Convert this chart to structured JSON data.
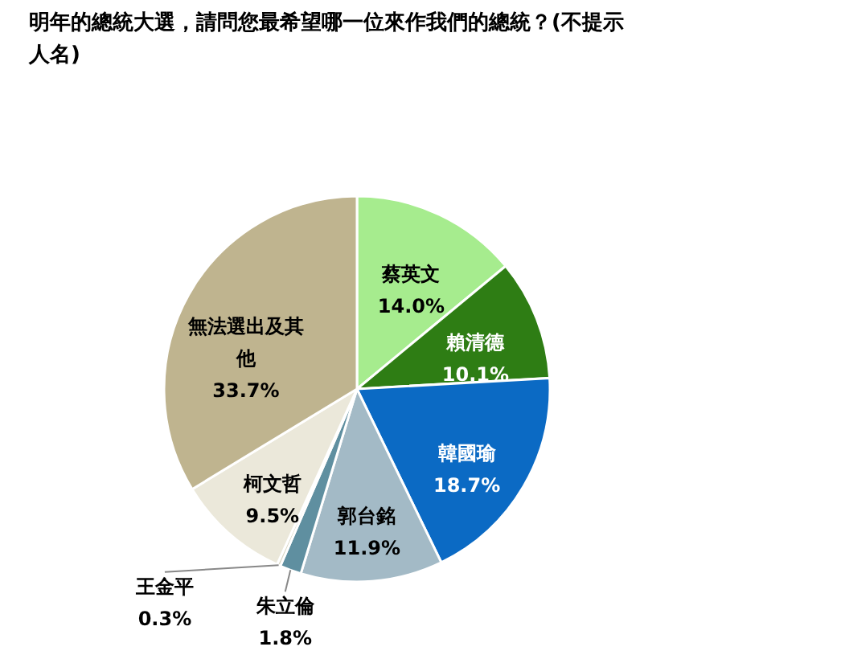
{
  "chart_data": {
    "type": "pie",
    "title": "明年的總統大選，請問您最希望哪一位來作我們的總統？(不提示人名)",
    "categories": [
      "蔡英文",
      "賴清德",
      "韓國瑜",
      "郭台銘",
      "朱立倫",
      "王金平",
      "柯文哲",
      "無法選出及其他"
    ],
    "values": [
      14.0,
      10.1,
      18.7,
      11.9,
      1.8,
      0.3,
      9.5,
      33.7
    ],
    "value_labels": [
      "14.0%",
      "10.1%",
      "18.7%",
      "11.9%",
      "1.8%",
      "0.3%",
      "9.5%",
      "33.7%"
    ],
    "colors": [
      "#a6ec8e",
      "#2e7d14",
      "#0b6ac4",
      "#a3bac6",
      "#5f8fa0",
      "#d9d6c4",
      "#ebe8da",
      "#bfb48f"
    ]
  }
}
